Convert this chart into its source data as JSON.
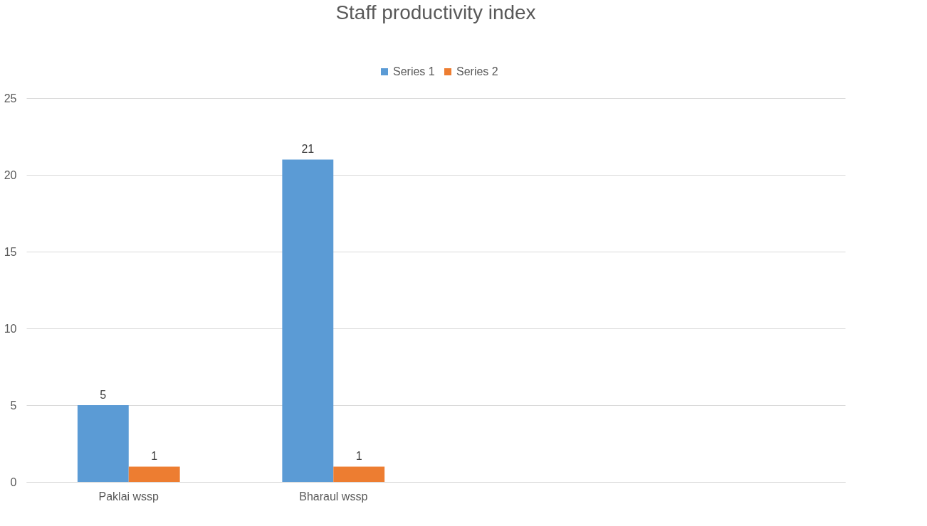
{
  "chart_data": {
    "type": "bar",
    "title": "Staff productivity index",
    "categories": [
      "Paklai wssp",
      "Bharaul wssp",
      null,
      null
    ],
    "series": [
      {
        "name": "Series 1",
        "color": "#5b9bd5",
        "values": [
          5,
          21,
          null,
          null
        ]
      },
      {
        "name": "Series 2",
        "color": "#ed7d31",
        "values": [
          1,
          1,
          null,
          null
        ]
      }
    ],
    "ylim": [
      0,
      25
    ],
    "yticks": [
      0,
      5,
      10,
      15,
      20,
      25
    ],
    "grid": "y",
    "legend": "top",
    "data_labels": true
  }
}
